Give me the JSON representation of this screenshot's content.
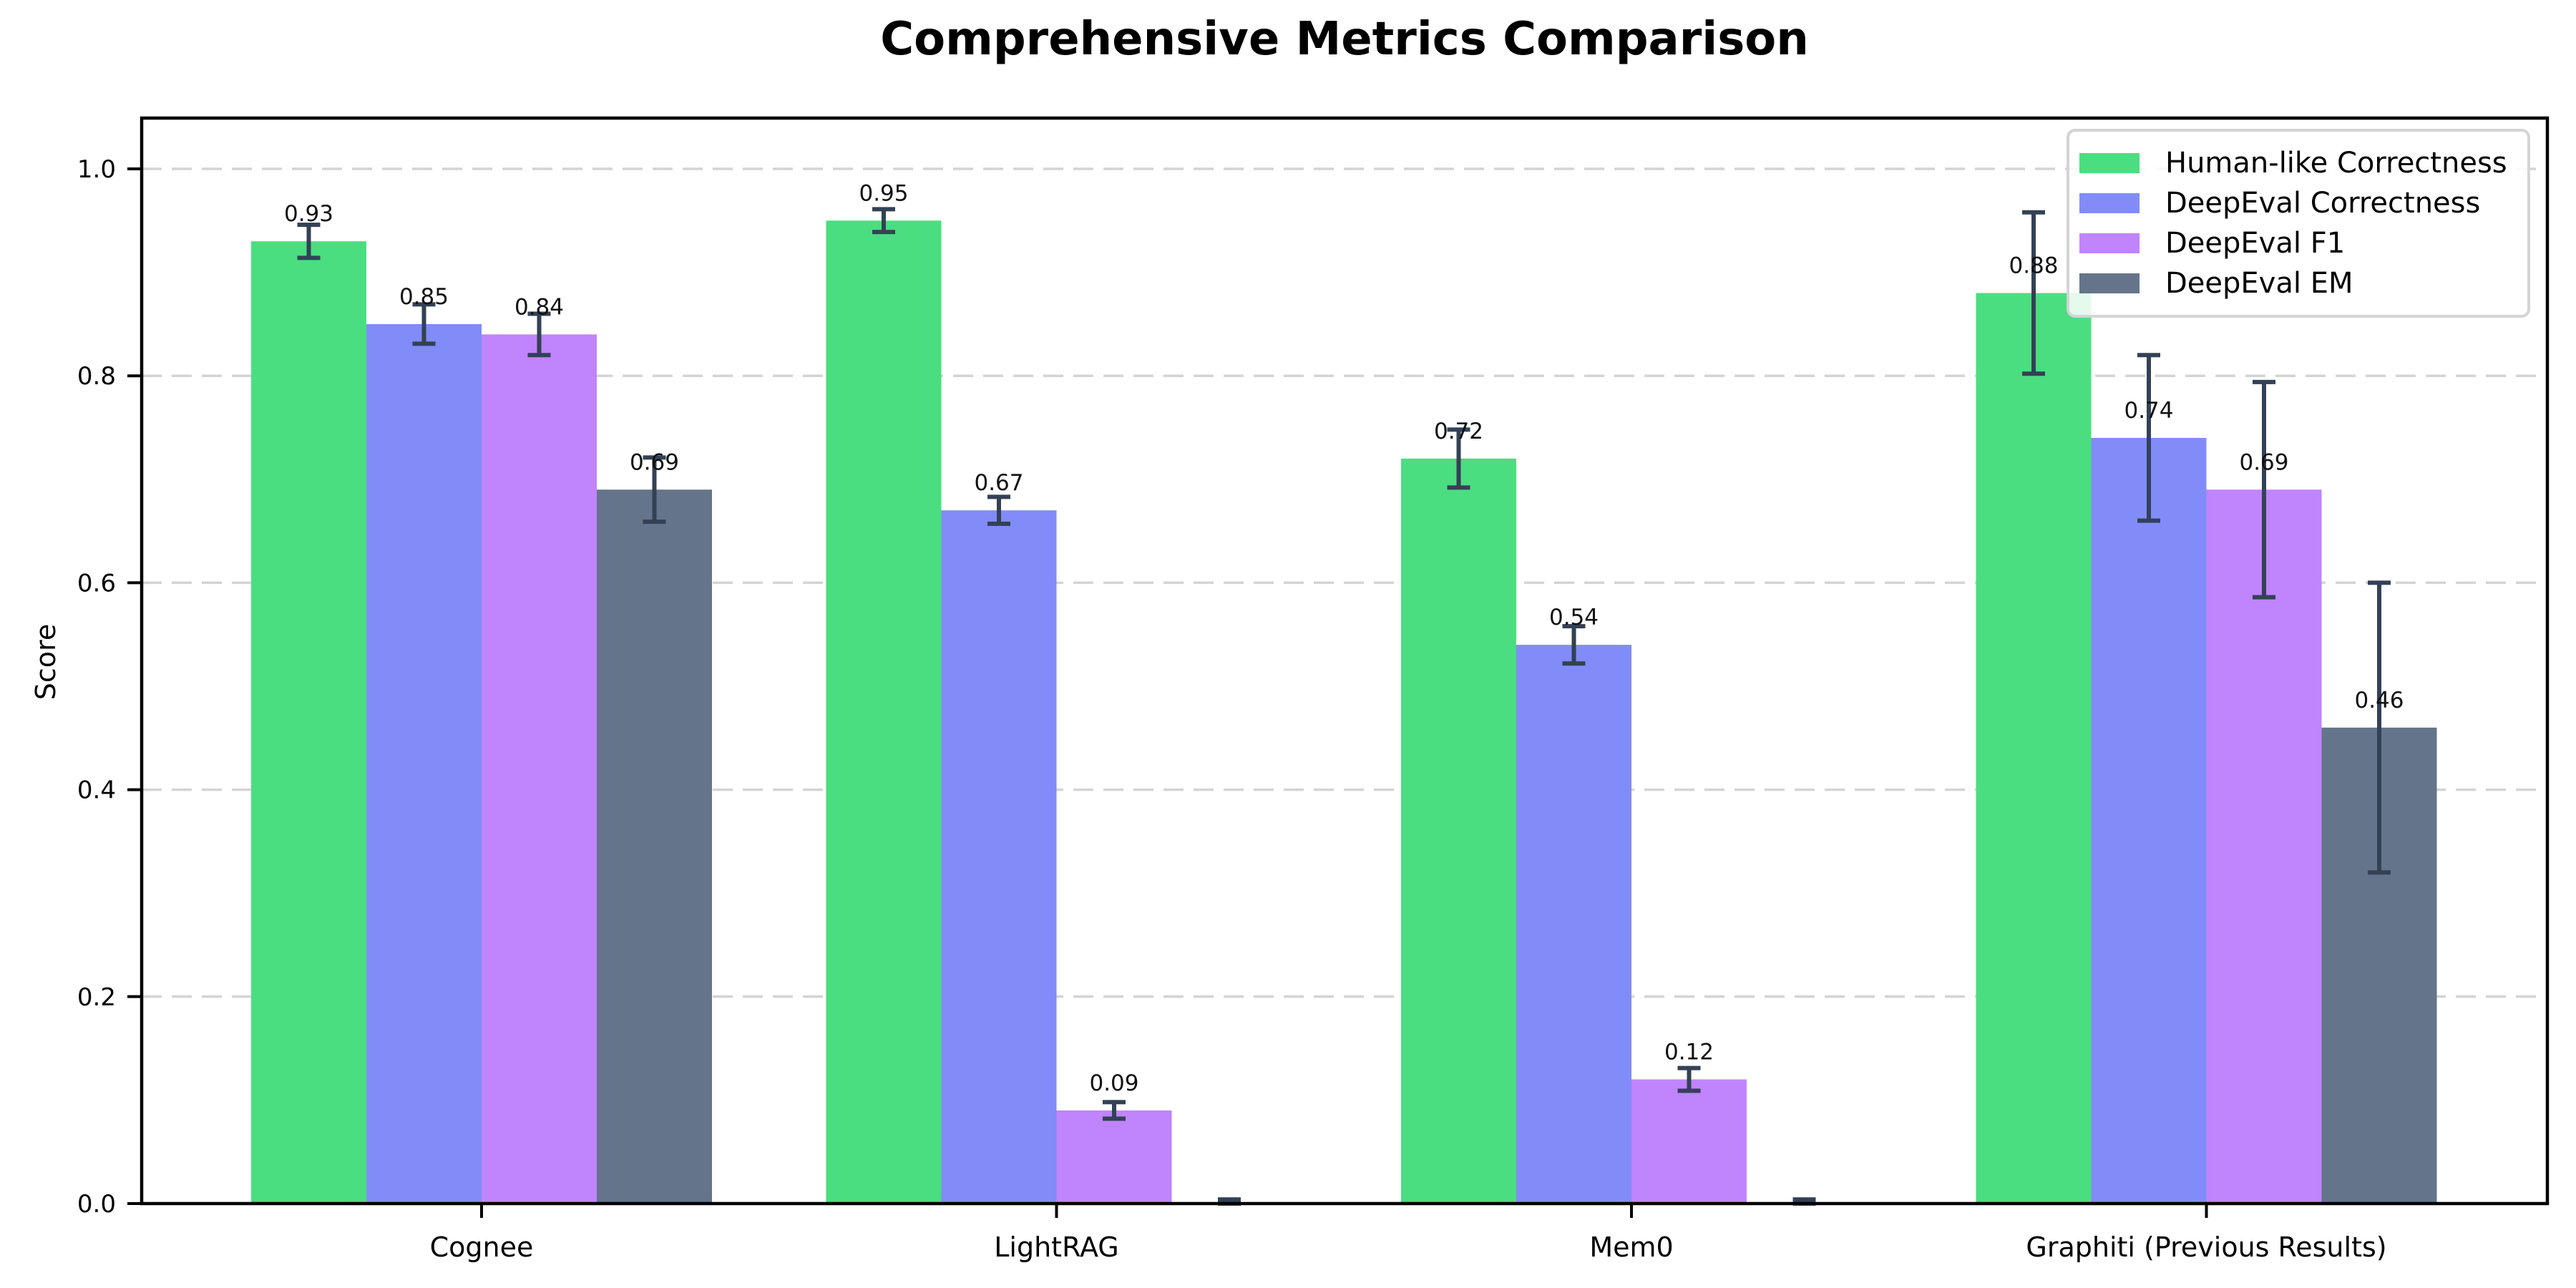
{
  "figure": {
    "background": "#ffffff"
  },
  "chart_data": {
    "type": "bar",
    "title": "Comprehensive Metrics Comparison",
    "xlabel": "",
    "ylabel": "Score",
    "ylim": [
      0.0,
      1.05
    ],
    "yticks": [
      "0.0",
      "0.2",
      "0.4",
      "0.6",
      "0.8",
      "1.0"
    ],
    "ytick_values": [
      0.0,
      0.2,
      0.4,
      0.6,
      0.8,
      1.0
    ],
    "grid": "horizontal dashed",
    "legend_position": "upper right",
    "categories": [
      "Cognee",
      "LightRAG",
      "Mem0",
      "Graphiti (Previous Results)"
    ],
    "series": [
      {
        "name": "Human-like Correctness",
        "color": "#4ade80",
        "values": [
          0.93,
          0.95,
          0.72,
          0.88
        ],
        "errors": [
          0.016,
          0.011,
          0.028,
          0.078
        ],
        "labels": [
          "0.93",
          "0.95",
          "0.72",
          "0.88"
        ]
      },
      {
        "name": "DeepEval Correctness",
        "color": "#818cf8",
        "values": [
          0.85,
          0.67,
          0.54,
          0.74
        ],
        "errors": [
          0.019,
          0.013,
          0.018,
          0.08
        ],
        "labels": [
          "0.85",
          "0.67",
          "0.54",
          "0.74"
        ]
      },
      {
        "name": "DeepEval F1",
        "color": "#c084fc",
        "values": [
          0.84,
          0.09,
          0.12,
          0.69
        ],
        "errors": [
          0.02,
          0.008,
          0.011,
          0.104
        ],
        "labels": [
          "0.84",
          "0.09",
          "0.12",
          "0.69"
        ]
      },
      {
        "name": "DeepEval EM",
        "color": "#64748b",
        "values": [
          0.69,
          0.0,
          0.0,
          0.46
        ],
        "errors": [
          0.031,
          0.004,
          0.004,
          0.14
        ],
        "labels": [
          "0.69",
          "",
          "",
          "0.46"
        ]
      }
    ],
    "style": {
      "error_bar_color": "#334155",
      "grid_color": "#d4d4d4",
      "axis_color": "#000000",
      "bar_label_color": "#111111",
      "tick_label_color": "#000000"
    }
  }
}
